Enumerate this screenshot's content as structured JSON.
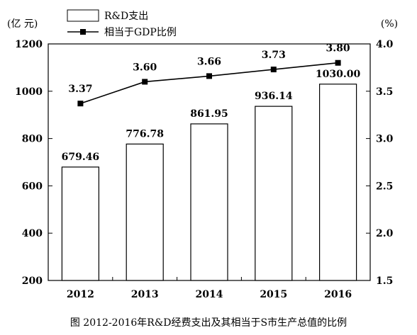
{
  "chart_data": {
    "type": "bar+line",
    "categories": [
      "2012",
      "2013",
      "2014",
      "2015",
      "2016"
    ],
    "series": [
      {
        "name": "R&D支出",
        "type": "bar",
        "axis": "left",
        "values": [
          679.46,
          776.78,
          861.95,
          936.14,
          1030.0
        ],
        "labels": [
          "679.46",
          "776.78",
          "861.95",
          "936.14",
          "1030.00"
        ]
      },
      {
        "name": "相当于GDP比例",
        "type": "line",
        "axis": "right",
        "marker": "square",
        "values": [
          3.37,
          3.6,
          3.66,
          3.73,
          3.8
        ],
        "labels": [
          "3.37",
          "3.60",
          "3.66",
          "3.73",
          "3.80"
        ]
      }
    ],
    "left_axis": {
      "unit": "(亿  元)",
      "ylim": [
        200,
        1200
      ],
      "ticks": [
        "200",
        "400",
        "600",
        "800",
        "1000",
        "1200"
      ]
    },
    "right_axis": {
      "unit": "(%)",
      "ylim": [
        1.5,
        4.0
      ],
      "ticks": [
        "1.5",
        "2.0",
        "2.5",
        "3.0",
        "3.5",
        "4.0"
      ]
    },
    "legend_position": "top-left",
    "grid": false,
    "caption": "图   2012-2016年R&D经费支出及其相当于S市生产总值的比例"
  }
}
